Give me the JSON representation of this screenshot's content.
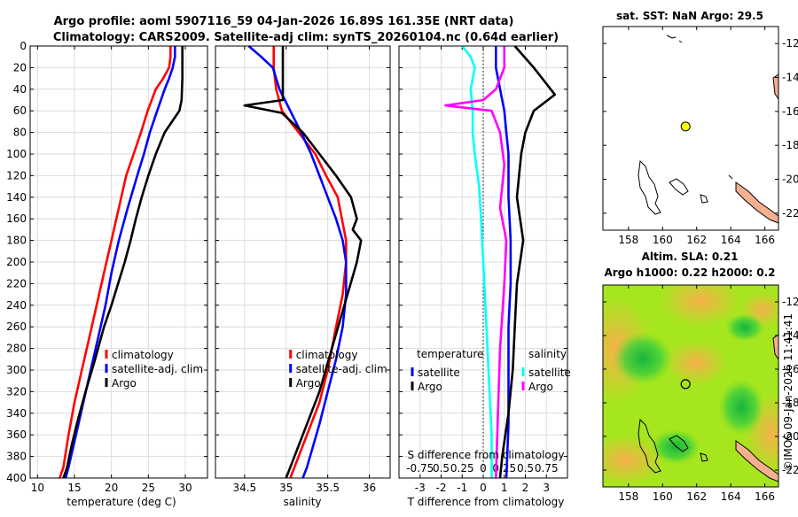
{
  "header": {
    "title_line1": "Argo profile: aoml 5907116_59 04-Jan-2026 16.89S 161.35E (NRT data)",
    "title_line2": "Climatology: CARS2009. Satellite-adj clim: synTS_20260104.nc (0.64d earlier)"
  },
  "colors": {
    "climatology": "#ff0000",
    "satellite": "#0000ff",
    "argo": "#000000",
    "satellite_salinity": "#00ffff",
    "argo_salinity": "#ff00ff",
    "land": "#f4b08f"
  },
  "chart_data": [
    {
      "id": "temperature",
      "type": "line",
      "xlabel": "temperature (deg C)",
      "ylabel": "",
      "xlim": [
        9,
        33
      ],
      "ylim": [
        400,
        0
      ],
      "xticks": [
        "10",
        "15",
        "20",
        "25",
        "30"
      ],
      "yticks": [
        "0",
        "20",
        "40",
        "60",
        "80",
        "100",
        "120",
        "140",
        "160",
        "180",
        "200",
        "220",
        "240",
        "260",
        "280",
        "300",
        "320",
        "340",
        "360",
        "380",
        "400"
      ],
      "legend": [
        "climatology",
        "satellite-adj. clim",
        "Argo"
      ],
      "series": [
        {
          "name": "climatology",
          "color": "#ff0000",
          "x": [
            28.0,
            28.0,
            27.8,
            27.0,
            26.0,
            24.9,
            24.0,
            23.0,
            22.0,
            21.0,
            20.0,
            19.0,
            18.0,
            17.0,
            16.0,
            15.0,
            14.2,
            13.5,
            13.0
          ],
          "depth": [
            0,
            10,
            20,
            30,
            40,
            60,
            80,
            100,
            120,
            150,
            180,
            210,
            240,
            270,
            300,
            330,
            360,
            390,
            400
          ]
        },
        {
          "name": "satellite-adj. clim",
          "color": "#0000ff",
          "x": [
            28.6,
            28.6,
            28.3,
            27.8,
            27.2,
            26.2,
            25.2,
            24.4,
            23.5,
            22.2,
            21.0,
            20.0,
            19.2,
            18.2,
            17.2,
            16.2,
            15.2,
            14.2,
            13.8
          ],
          "depth": [
            0,
            10,
            20,
            30,
            40,
            60,
            80,
            100,
            120,
            150,
            180,
            210,
            240,
            270,
            300,
            330,
            360,
            390,
            400
          ]
        },
        {
          "name": "Argo",
          "color": "#000000",
          "x": [
            29.6,
            29.6,
            29.6,
            29.5,
            29.2,
            28.2,
            27.2,
            26.0,
            25.0,
            24.1,
            23.3,
            22.6,
            21.8,
            20.9,
            20.0,
            19.0,
            17.8,
            16.5,
            15.5,
            14.6,
            14.0,
            13.5
          ],
          "depth": [
            0,
            10,
            30,
            50,
            60,
            70,
            80,
            100,
            120,
            140,
            160,
            180,
            200,
            220,
            240,
            260,
            290,
            320,
            345,
            370,
            390,
            400
          ]
        }
      ]
    },
    {
      "id": "salinity",
      "type": "line",
      "xlabel": "salinity",
      "xlim": [
        34.15,
        36.25
      ],
      "ylim": [
        400,
        0
      ],
      "xticks": [
        "34.5",
        "35",
        "35.5",
        "36"
      ],
      "legend": [
        "climatology",
        "satellite-adj. clim",
        "Argo"
      ],
      "series": [
        {
          "name": "climatology",
          "color": "#ff0000",
          "x": [
            34.85,
            34.85,
            34.88,
            34.95,
            35.05,
            35.15,
            35.25,
            35.35,
            35.48,
            35.62,
            35.72,
            35.72,
            35.68,
            35.6,
            35.5,
            35.4,
            35.3,
            35.15,
            35.05
          ],
          "depth": [
            0,
            20,
            40,
            60,
            70,
            80,
            90,
            100,
            120,
            140,
            180,
            200,
            230,
            260,
            300,
            330,
            350,
            380,
            400
          ]
        },
        {
          "name": "satellite-adj. clim",
          "color": "#0000ff",
          "x": [
            34.55,
            34.7,
            34.84,
            34.92,
            35.05,
            35.18,
            35.3,
            35.4,
            35.5,
            35.6,
            35.68,
            35.72,
            35.72,
            35.68,
            35.6,
            35.5,
            35.4,
            35.25,
            35.2
          ],
          "depth": [
            0,
            10,
            20,
            40,
            60,
            80,
            100,
            120,
            140,
            160,
            180,
            200,
            230,
            260,
            290,
            320,
            350,
            390,
            400
          ]
        },
        {
          "name": "Argo",
          "color": "#000000",
          "x": [
            34.96,
            34.96,
            34.96,
            34.96,
            34.5,
            34.95,
            35.2,
            35.4,
            35.6,
            35.78,
            35.85,
            35.8,
            35.9,
            35.85,
            35.7,
            35.55,
            35.4,
            35.3,
            35.15,
            35.05,
            35.0
          ],
          "depth": [
            0,
            10,
            30,
            50,
            55,
            62,
            80,
            100,
            120,
            140,
            160,
            170,
            180,
            200,
            240,
            280,
            320,
            340,
            370,
            390,
            400
          ]
        }
      ]
    },
    {
      "id": "difference",
      "type": "line",
      "xlabel": "T difference from climatology",
      "xlabel_top": "S difference from climatology",
      "xlim": [
        -4,
        4
      ],
      "ylim": [
        400,
        0
      ],
      "xticks": [
        "-3",
        "-2",
        "-1",
        "0",
        "1",
        "2",
        "3"
      ],
      "top_ticks": [
        "-0.75",
        "0.5",
        "0.25",
        "0",
        "0.25",
        "0.5",
        "0.75"
      ],
      "legend_temperature": {
        "title": "temperature",
        "entries": [
          "satellite",
          "Argo"
        ]
      },
      "legend_salinity": {
        "title": "salinity",
        "entries": [
          "satellite",
          "Argo"
        ]
      },
      "series": [
        {
          "name": "temperature satellite",
          "color": "#0000ff",
          "x": [
            0.6,
            0.6,
            0.8,
            1.0,
            1.1,
            1.2,
            1.2,
            1.3,
            1.3,
            1.2,
            1.2,
            1.2,
            1.1
          ],
          "depth": [
            0,
            20,
            40,
            60,
            80,
            100,
            140,
            180,
            220,
            260,
            300,
            350,
            400
          ]
        },
        {
          "name": "temperature Argo",
          "color": "#000000",
          "x": [
            1.5,
            2.4,
            3.0,
            3.4,
            2.4,
            2.0,
            1.8,
            1.6,
            1.9,
            1.6,
            1.5,
            1.4,
            1.2,
            0.9,
            0.8
          ],
          "depth": [
            0,
            20,
            35,
            45,
            60,
            80,
            100,
            140,
            180,
            220,
            260,
            300,
            340,
            380,
            400
          ]
        },
        {
          "name": "salinity satellite",
          "color": "#00ffff",
          "x": [
            -1.0,
            -0.6,
            -0.4,
            -0.6,
            -0.5,
            -0.5,
            -0.4,
            -0.2,
            -0.1,
            0.0,
            0.1,
            0.2,
            0.3,
            0.4,
            0.4
          ],
          "depth": [
            0,
            10,
            20,
            40,
            60,
            80,
            100,
            130,
            160,
            200,
            240,
            280,
            320,
            360,
            400
          ]
        },
        {
          "name": "salinity Argo",
          "color": "#ff00ff",
          "x": [
            1.0,
            1.0,
            0.6,
            0.0,
            -1.8,
            0.4,
            0.8,
            1.0,
            0.8,
            1.1,
            1.0,
            0.8,
            0.7,
            0.6
          ],
          "depth": [
            0,
            20,
            40,
            50,
            55,
            60,
            80,
            110,
            150,
            180,
            220,
            280,
            340,
            400
          ]
        }
      ]
    },
    {
      "id": "sst-map",
      "type": "map",
      "title": "sat. SST: NaN Argo: 29.5",
      "xticks": [
        "158",
        "160",
        "162",
        "164",
        "166"
      ],
      "yticks": [
        "-12",
        "-14",
        "-16",
        "-18",
        "-20",
        "-22"
      ],
      "xlim": [
        156.5,
        166.8
      ],
      "ylim": [
        -23,
        -11
      ],
      "marker": {
        "lon": 161.35,
        "lat": -16.89
      }
    },
    {
      "id": "sla-map",
      "type": "map",
      "title_line1": "Altim. SLA: 0.21",
      "title_line2": "Argo h1000: 0.22 h2000: 0.2",
      "xticks": [
        "158",
        "160",
        "162",
        "164",
        "166"
      ],
      "yticks": [
        "-12",
        "-14",
        "-16",
        "-18",
        "-20",
        "-22"
      ],
      "xlim": [
        156.5,
        166.8
      ],
      "ylim": [
        -23,
        -11
      ],
      "marker": {
        "lon": 161.35,
        "lat": -16.89
      }
    }
  ],
  "footer": {
    "credit": "©IMOS 09-Jan-2026 11:41:41"
  }
}
